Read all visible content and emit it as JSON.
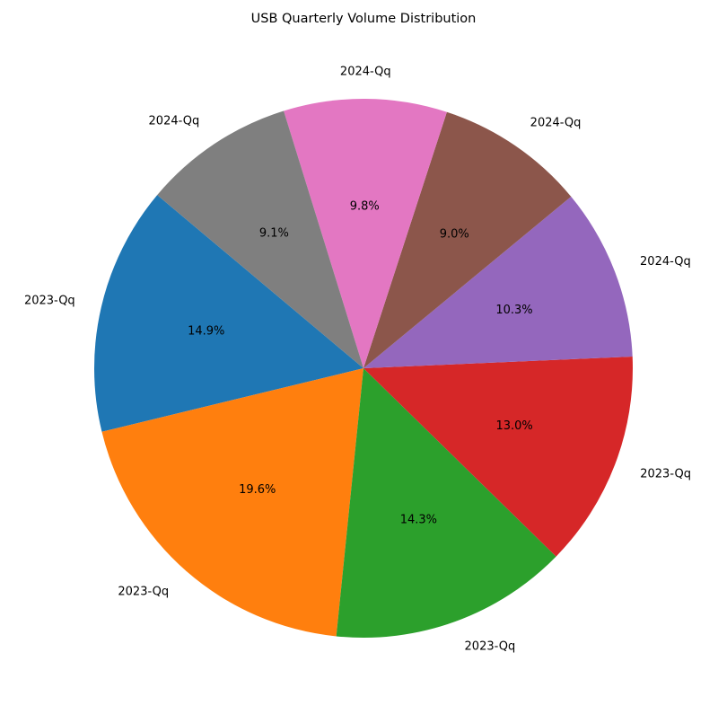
{
  "chart_data": {
    "type": "pie",
    "title": "USB Quarterly Volume Distribution",
    "categories": [
      "2023-Qq",
      "2023-Qq",
      "2023-Qq",
      "2023-Qq",
      "2024-Qq",
      "2024-Qq",
      "2024-Qq",
      "2024-Qq"
    ],
    "values": [
      14.9,
      19.6,
      14.3,
      13.0,
      10.3,
      9.0,
      9.8,
      9.1
    ],
    "percent_labels": [
      "14.9%",
      "19.6%",
      "14.3%",
      "13.0%",
      "10.3%",
      "9.0%",
      "9.8%",
      "9.1%"
    ],
    "colors": [
      "#1f77b4",
      "#ff7f0e",
      "#2ca02c",
      "#d62728",
      "#9467bd",
      "#8c564b",
      "#e377c2",
      "#7f7f7f"
    ],
    "start_angle_deg": 140,
    "direction": "counterclockwise",
    "legend": "none"
  }
}
